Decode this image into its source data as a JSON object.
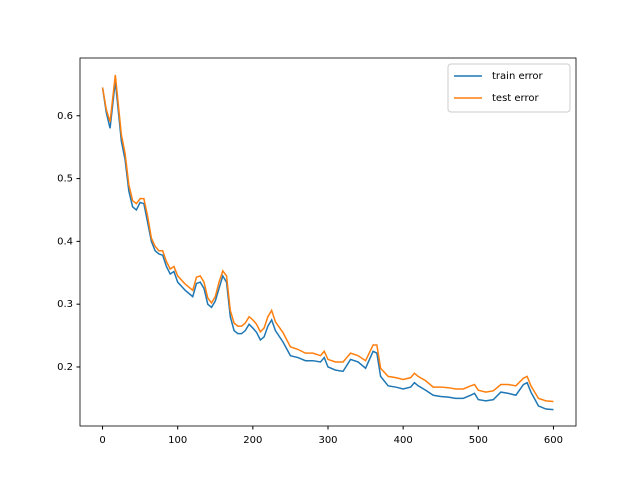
{
  "chart_data": {
    "type": "line",
    "x": [
      0,
      5,
      10,
      17,
      25,
      30,
      35,
      40,
      45,
      50,
      55,
      60,
      65,
      70,
      75,
      80,
      85,
      90,
      95,
      100,
      110,
      120,
      125,
      130,
      135,
      140,
      145,
      150,
      155,
      160,
      165,
      170,
      175,
      180,
      185,
      190,
      195,
      200,
      205,
      210,
      215,
      220,
      225,
      230,
      240,
      250,
      260,
      270,
      280,
      290,
      295,
      300,
      310,
      320,
      330,
      340,
      350,
      360,
      365,
      370,
      380,
      390,
      400,
      410,
      415,
      420,
      430,
      440,
      450,
      460,
      470,
      480,
      490,
      495,
      500,
      510,
      520,
      530,
      540,
      550,
      560,
      565,
      570,
      580,
      590,
      600
    ],
    "series": [
      {
        "name": "train error",
        "color": "#1f77b4",
        "values": [
          0.645,
          0.605,
          0.58,
          0.655,
          0.56,
          0.53,
          0.48,
          0.455,
          0.45,
          0.462,
          0.46,
          0.43,
          0.4,
          0.385,
          0.38,
          0.378,
          0.36,
          0.348,
          0.352,
          0.335,
          0.322,
          0.312,
          0.333,
          0.335,
          0.325,
          0.3,
          0.295,
          0.305,
          0.325,
          0.345,
          0.335,
          0.28,
          0.258,
          0.253,
          0.253,
          0.258,
          0.268,
          0.262,
          0.255,
          0.243,
          0.248,
          0.265,
          0.275,
          0.258,
          0.24,
          0.218,
          0.215,
          0.21,
          0.21,
          0.208,
          0.215,
          0.2,
          0.195,
          0.193,
          0.212,
          0.208,
          0.198,
          0.225,
          0.222,
          0.185,
          0.17,
          0.168,
          0.165,
          0.168,
          0.175,
          0.17,
          0.163,
          0.155,
          0.153,
          0.152,
          0.15,
          0.15,
          0.155,
          0.158,
          0.148,
          0.146,
          0.148,
          0.16,
          0.158,
          0.155,
          0.172,
          0.175,
          0.16,
          0.138,
          0.133,
          0.132
        ]
      },
      {
        "name": "test error",
        "color": "#ff7f0e",
        "values": [
          0.645,
          0.61,
          0.59,
          0.665,
          0.57,
          0.54,
          0.49,
          0.465,
          0.46,
          0.468,
          0.468,
          0.44,
          0.405,
          0.392,
          0.385,
          0.385,
          0.368,
          0.356,
          0.36,
          0.345,
          0.332,
          0.322,
          0.343,
          0.345,
          0.335,
          0.31,
          0.302,
          0.312,
          0.335,
          0.353,
          0.345,
          0.29,
          0.27,
          0.265,
          0.265,
          0.27,
          0.28,
          0.275,
          0.268,
          0.256,
          0.262,
          0.28,
          0.29,
          0.272,
          0.255,
          0.232,
          0.228,
          0.222,
          0.222,
          0.218,
          0.225,
          0.212,
          0.208,
          0.208,
          0.222,
          0.218,
          0.21,
          0.235,
          0.235,
          0.198,
          0.185,
          0.183,
          0.18,
          0.183,
          0.19,
          0.185,
          0.178,
          0.168,
          0.168,
          0.167,
          0.165,
          0.165,
          0.17,
          0.172,
          0.163,
          0.16,
          0.162,
          0.172,
          0.172,
          0.17,
          0.182,
          0.185,
          0.17,
          0.15,
          0.146,
          0.145
        ]
      }
    ],
    "xlim": [
      -30,
      630
    ],
    "ylim": [
      0.106,
      0.692
    ],
    "xticks": [
      0,
      100,
      200,
      300,
      400,
      500,
      600
    ],
    "yticks": [
      0.2,
      0.3,
      0.4,
      0.5,
      0.6
    ],
    "legend": "upper right"
  }
}
